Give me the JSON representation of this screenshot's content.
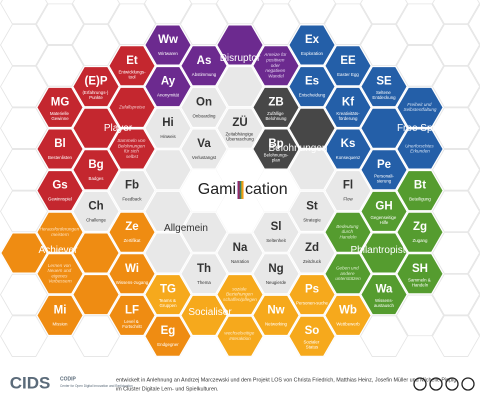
{
  "title": {
    "before": "Gami",
    "after": "cation"
  },
  "groups": [
    {
      "name": "Disruptor",
      "notes": [
        "Anreize für positiven oder negativen Wandel"
      ],
      "cells": [
        {
          "symbol": "Ww",
          "label": "Wirtwaren"
        },
        {
          "symbol": "As",
          "label": "Abstimmung"
        },
        {
          "symbol": "Ay",
          "label": "Anonymität"
        }
      ]
    },
    {
      "name": "Player",
      "notes": [
        "Zufallspreise",
        "Sammeln von Belohnungen für sich selbst"
      ],
      "cells": [
        {
          "symbol": "Et",
          "label": "Entwicklungs-tool"
        },
        {
          "symbol": "(E)P",
          "label": "(Erfahrungs-) Punkte"
        },
        {
          "symbol": "MG",
          "label": "Materielle Gewinne"
        },
        {
          "symbol": "Bl",
          "label": "Bestenlisten"
        },
        {
          "symbol": "Bg",
          "label": "Badges"
        },
        {
          "symbol": "Gs",
          "label": "Gewinnspiel"
        }
      ]
    },
    {
      "name": "Free Spirit",
      "notes": [
        "Freiheit und Selbstentfaltung",
        "Unerforschtes Erkunden"
      ],
      "cells": [
        {
          "symbol": "Ex",
          "label": "Exploration"
        },
        {
          "symbol": "EE",
          "label": "Easter Egg"
        },
        {
          "symbol": "Es",
          "label": "Entscheidung"
        },
        {
          "symbol": "SE",
          "label": "Seltene Entdeckung"
        },
        {
          "symbol": "Kf",
          "label": "Kreativitäts-förderung"
        },
        {
          "symbol": "Ks",
          "label": "Konsequenz"
        },
        {
          "symbol": "Pe",
          "label": "Personali-sierung"
        }
      ]
    },
    {
      "name": "Belohnungen",
      "notes": [],
      "cells": [
        {
          "symbol": "ZB",
          "label": "Zufällige Belohnung"
        },
        {
          "symbol": "Bp",
          "label": "Belohnungs-plan"
        }
      ]
    },
    {
      "name": "Allgemein",
      "notes": [],
      "cells": [
        {
          "symbol": "On",
          "label": "Onboarding"
        },
        {
          "symbol": "Hi",
          "label": "Hinweis"
        },
        {
          "symbol": "ZÜ",
          "label": "Zeitabhängige Überraschung"
        },
        {
          "symbol": "Va",
          "label": "Verlustangst"
        },
        {
          "symbol": "Fb",
          "label": "Feedback"
        },
        {
          "symbol": "Ch",
          "label": "Challenge"
        },
        {
          "symbol": "Fl",
          "label": "Flow"
        },
        {
          "symbol": "St",
          "label": "Strategie"
        },
        {
          "symbol": "Sl",
          "label": "Seltenheit"
        },
        {
          "symbol": "Na",
          "label": "Narration"
        },
        {
          "symbol": "Zd",
          "label": "Zeitdruck"
        },
        {
          "symbol": "Th",
          "label": "Thema"
        },
        {
          "symbol": "Ng",
          "label": "Neugierde"
        }
      ]
    },
    {
      "name": "Achiever",
      "notes": [
        "Herausforderungen meistern",
        "Lernen von Neuem und eigenes Verbessern"
      ],
      "cells": [
        {
          "symbol": "Ze",
          "label": "Zertifikat"
        },
        {
          "symbol": "Wi",
          "label": "Wissens-zugang"
        },
        {
          "symbol": "Mi",
          "label": "Mission"
        },
        {
          "symbol": "LF",
          "label": "Level & Fortschritt"
        },
        {
          "symbol": "Eg",
          "label": "Endgegner"
        }
      ]
    },
    {
      "name": "Socialiser",
      "notes": [
        "soziale Beziehungen schaffen/pflegen",
        "wechselseitige Interaktion"
      ],
      "cells": [
        {
          "symbol": "TG",
          "label": "Teams & Gruppen"
        },
        {
          "symbol": "Ps",
          "label": "Personen-suche"
        },
        {
          "symbol": "Nw",
          "label": "Networking"
        },
        {
          "symbol": "Wb",
          "label": "Wettbewerb"
        },
        {
          "symbol": "So",
          "label": "Sozialer Status"
        }
      ]
    },
    {
      "name": "Philantropist",
      "notes": [
        "Bedeutung durch Handeln",
        "Geben und andere unterstützen"
      ],
      "cells": [
        {
          "symbol": "Bt",
          "label": "Beteiligung"
        },
        {
          "symbol": "GH",
          "label": "Gegenseitige Hilfe"
        },
        {
          "symbol": "Zg",
          "label": "Zugang"
        },
        {
          "symbol": "SH",
          "label": "Sammeln & Handeln"
        },
        {
          "symbol": "Wa",
          "label": "Wissens-austausch"
        }
      ]
    }
  ],
  "footer": {
    "logo": "CIDS",
    "org": "CODIP",
    "org_full": "Center for Open Digital Innovation and Participation",
    "credit": [
      "entwickelt in Anlehnung an Andrzej Marczewski und dem Projekt LOS von Christa Friedrich, Matthias Heinz, Josefin Müller und Michelle Pippig",
      "im Cluster Digitale Lern- und Spielkulturen."
    ]
  }
}
